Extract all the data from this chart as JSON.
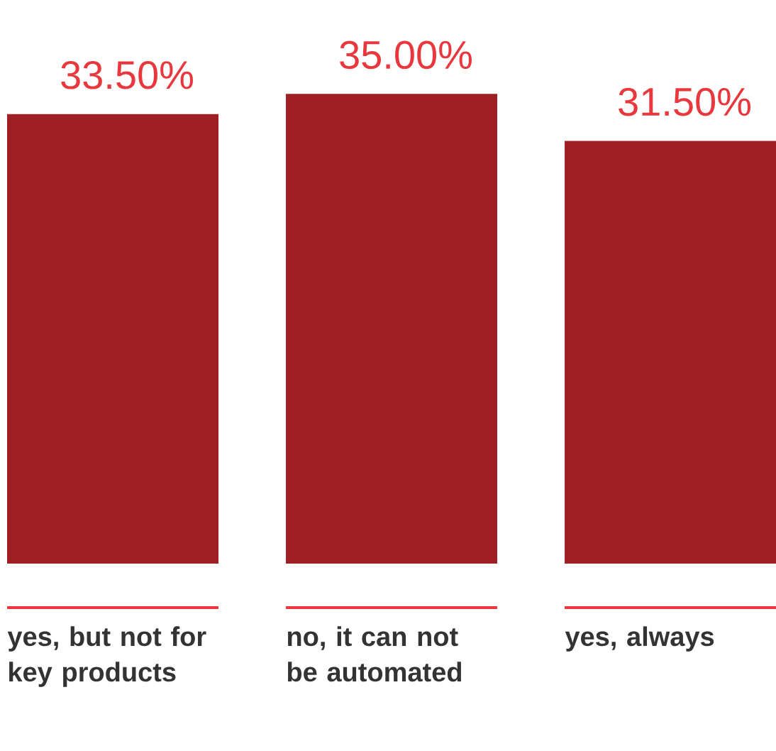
{
  "chart_data": {
    "type": "bar",
    "categories": [
      "yes, but not for key products",
      "no, it can not be automated",
      "yes, always"
    ],
    "values": [
      33.5,
      35.0,
      31.5
    ],
    "value_labels": [
      "33.50%",
      "35.00%",
      "31.50%"
    ],
    "color": "#a01f24"
  }
}
